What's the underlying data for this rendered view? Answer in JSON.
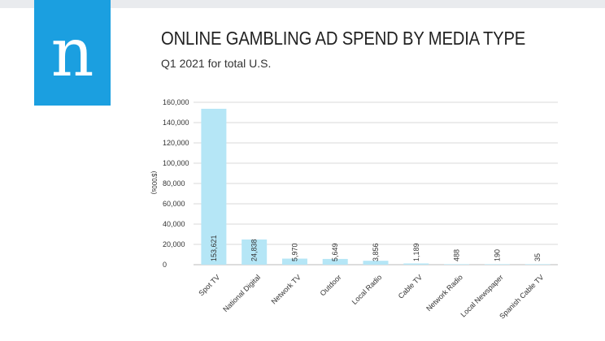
{
  "logo": {
    "letter": "n",
    "color": "#1b9fe0"
  },
  "chart_data": {
    "type": "bar",
    "title": "ONLINE GAMBLING AD SPEND BY MEDIA TYPE",
    "subtitle": "Q1 2021 for total U.S.",
    "ylabel": "($'000s)",
    "xlabel": "",
    "ylim": [
      0,
      160000
    ],
    "yticks": [
      "0",
      "20,000",
      "40,000",
      "60,000",
      "80,000",
      "100,000",
      "120,000",
      "140,000",
      "160,000"
    ],
    "grid": true,
    "legend": "none",
    "bar_color": "#b5e6f6",
    "categories": [
      "Spot TV",
      "National Digital",
      "Network TV",
      "Outdoor",
      "Local Radio",
      "Cable TV",
      "Network Radio",
      "Local Newspaper",
      "Spanish Cable TV"
    ],
    "values": [
      153621,
      24838,
      5970,
      5649,
      3856,
      1189,
      488,
      190,
      35
    ],
    "value_labels": [
      "153,621",
      "24,838",
      "5,970",
      "5,649",
      "3,856",
      "1,189",
      "488",
      "190",
      "35"
    ]
  }
}
